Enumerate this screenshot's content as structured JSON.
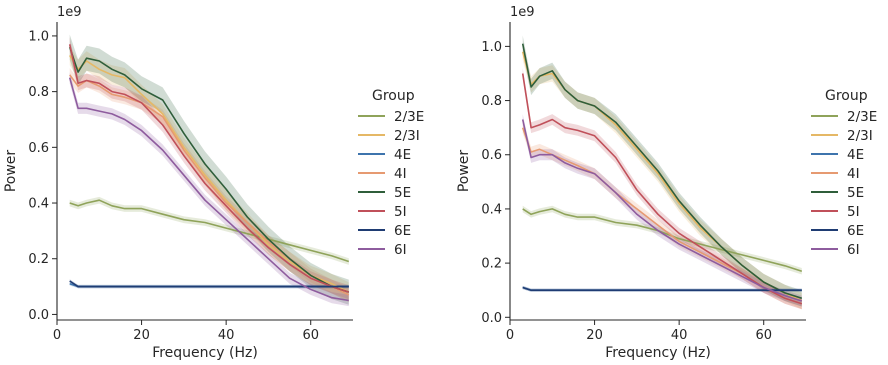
{
  "chart_data": [
    {
      "type": "line",
      "xlabel": "Frequency (Hz)",
      "ylabel": "Power",
      "y_multiplier_label": "1e9",
      "xlim": [
        0,
        70
      ],
      "ylim": [
        -0.02,
        1.05
      ],
      "xticks": [
        0,
        20,
        40,
        60
      ],
      "yticks": [
        0.0,
        0.2,
        0.4,
        0.6,
        0.8,
        1.0
      ],
      "ytick_labels": [
        "0.0",
        "0.2",
        "0.4",
        "0.6",
        "0.8",
        "1.0"
      ],
      "grid": false,
      "legend_title": "Group",
      "legend_position": "right",
      "x": [
        3,
        5,
        7,
        10,
        13,
        16,
        20,
        25,
        30,
        35,
        40,
        45,
        50,
        55,
        60,
        65,
        69
      ],
      "series": [
        {
          "name": "2/3E",
          "color": "#8fa35a",
          "band": 0.012,
          "values": [
            0.4,
            0.39,
            0.4,
            0.41,
            0.39,
            0.38,
            0.38,
            0.36,
            0.34,
            0.33,
            0.31,
            0.29,
            0.27,
            0.25,
            0.23,
            0.21,
            0.19
          ]
        },
        {
          "name": "2/3I",
          "color": "#e5b866",
          "band": 0.035,
          "values": [
            0.93,
            0.88,
            0.91,
            0.88,
            0.86,
            0.85,
            0.79,
            0.72,
            0.6,
            0.5,
            0.41,
            0.33,
            0.25,
            0.19,
            0.14,
            0.11,
            0.08
          ]
        },
        {
          "name": "4E",
          "color": "#3e74ad",
          "band": 0.006,
          "values": [
            0.11,
            0.1,
            0.1,
            0.1,
            0.1,
            0.1,
            0.1,
            0.1,
            0.1,
            0.1,
            0.1,
            0.1,
            0.1,
            0.1,
            0.1,
            0.1,
            0.1
          ]
        },
        {
          "name": "4I",
          "color": "#e69a71",
          "band": 0.025,
          "values": [
            0.86,
            0.82,
            0.84,
            0.82,
            0.79,
            0.78,
            0.76,
            0.71,
            0.59,
            0.49,
            0.4,
            0.33,
            0.26,
            0.2,
            0.14,
            0.1,
            0.07
          ]
        },
        {
          "name": "5E",
          "color": "#2f5e3a",
          "band": 0.045,
          "values": [
            0.96,
            0.87,
            0.92,
            0.91,
            0.88,
            0.86,
            0.81,
            0.77,
            0.65,
            0.54,
            0.45,
            0.35,
            0.27,
            0.2,
            0.14,
            0.1,
            0.08
          ]
        },
        {
          "name": "5I",
          "color": "#c0505a",
          "band": 0.025,
          "values": [
            0.97,
            0.83,
            0.84,
            0.83,
            0.8,
            0.79,
            0.76,
            0.68,
            0.57,
            0.47,
            0.39,
            0.31,
            0.24,
            0.18,
            0.13,
            0.1,
            0.08
          ]
        },
        {
          "name": "6E",
          "color": "#1f3c73",
          "band": 0.006,
          "values": [
            0.12,
            0.1,
            0.1,
            0.1,
            0.1,
            0.1,
            0.1,
            0.1,
            0.1,
            0.1,
            0.1,
            0.1,
            0.1,
            0.1,
            0.1,
            0.1,
            0.1
          ]
        },
        {
          "name": "6I",
          "color": "#8e5c9e",
          "band": 0.02,
          "values": [
            0.85,
            0.74,
            0.74,
            0.73,
            0.72,
            0.7,
            0.66,
            0.59,
            0.5,
            0.41,
            0.34,
            0.27,
            0.2,
            0.13,
            0.09,
            0.06,
            0.05
          ]
        }
      ]
    },
    {
      "type": "line",
      "xlabel": "Frequency (Hz)",
      "ylabel": "Power",
      "y_multiplier_label": "1e9",
      "xlim": [
        0,
        70
      ],
      "ylim": [
        -0.01,
        1.09
      ],
      "xticks": [
        0,
        20,
        40,
        60
      ],
      "yticks": [
        0.0,
        0.2,
        0.4,
        0.6,
        0.8,
        1.0
      ],
      "ytick_labels": [
        "0.0",
        "0.2",
        "0.4",
        "0.6",
        "0.8",
        "1.0"
      ],
      "grid": false,
      "legend_title": "Group",
      "legend_position": "right",
      "x": [
        3,
        5,
        7,
        10,
        13,
        16,
        20,
        25,
        30,
        35,
        40,
        45,
        50,
        55,
        60,
        65,
        69
      ],
      "series": [
        {
          "name": "2/3E",
          "color": "#8fa35a",
          "band": 0.012,
          "values": [
            0.4,
            0.38,
            0.39,
            0.4,
            0.38,
            0.37,
            0.37,
            0.35,
            0.34,
            0.32,
            0.29,
            0.27,
            0.25,
            0.23,
            0.21,
            0.19,
            0.17
          ]
        },
        {
          "name": "2/3I",
          "color": "#e5b866",
          "band": 0.03,
          "values": [
            0.98,
            0.86,
            0.89,
            0.9,
            0.84,
            0.8,
            0.78,
            0.71,
            0.62,
            0.53,
            0.42,
            0.33,
            0.26,
            0.19,
            0.13,
            0.09,
            0.06
          ]
        },
        {
          "name": "4E",
          "color": "#3e74ad",
          "band": 0.006,
          "values": [
            0.11,
            0.1,
            0.1,
            0.1,
            0.1,
            0.1,
            0.1,
            0.1,
            0.1,
            0.1,
            0.1,
            0.1,
            0.1,
            0.1,
            0.1,
            0.1,
            0.1
          ]
        },
        {
          "name": "4I",
          "color": "#e69a71",
          "band": 0.02,
          "values": [
            0.7,
            0.61,
            0.62,
            0.6,
            0.58,
            0.56,
            0.53,
            0.46,
            0.4,
            0.34,
            0.28,
            0.24,
            0.2,
            0.16,
            0.11,
            0.07,
            0.05
          ]
        },
        {
          "name": "5E",
          "color": "#2f5e3a",
          "band": 0.03,
          "values": [
            1.01,
            0.85,
            0.89,
            0.91,
            0.84,
            0.8,
            0.78,
            0.72,
            0.63,
            0.54,
            0.43,
            0.34,
            0.26,
            0.19,
            0.13,
            0.09,
            0.07
          ]
        },
        {
          "name": "5I",
          "color": "#c0505a",
          "band": 0.02,
          "values": [
            0.9,
            0.7,
            0.71,
            0.73,
            0.7,
            0.69,
            0.67,
            0.59,
            0.47,
            0.38,
            0.31,
            0.26,
            0.21,
            0.16,
            0.11,
            0.07,
            0.05
          ]
        },
        {
          "name": "6E",
          "color": "#1f3c73",
          "band": 0.006,
          "values": [
            0.11,
            0.1,
            0.1,
            0.1,
            0.1,
            0.1,
            0.1,
            0.1,
            0.1,
            0.1,
            0.1,
            0.1,
            0.1,
            0.1,
            0.1,
            0.1,
            0.1
          ]
        },
        {
          "name": "6I",
          "color": "#8e5c9e",
          "band": 0.02,
          "values": [
            0.73,
            0.59,
            0.6,
            0.6,
            0.57,
            0.55,
            0.53,
            0.46,
            0.38,
            0.32,
            0.27,
            0.23,
            0.19,
            0.15,
            0.11,
            0.08,
            0.06
          ]
        }
      ]
    }
  ]
}
